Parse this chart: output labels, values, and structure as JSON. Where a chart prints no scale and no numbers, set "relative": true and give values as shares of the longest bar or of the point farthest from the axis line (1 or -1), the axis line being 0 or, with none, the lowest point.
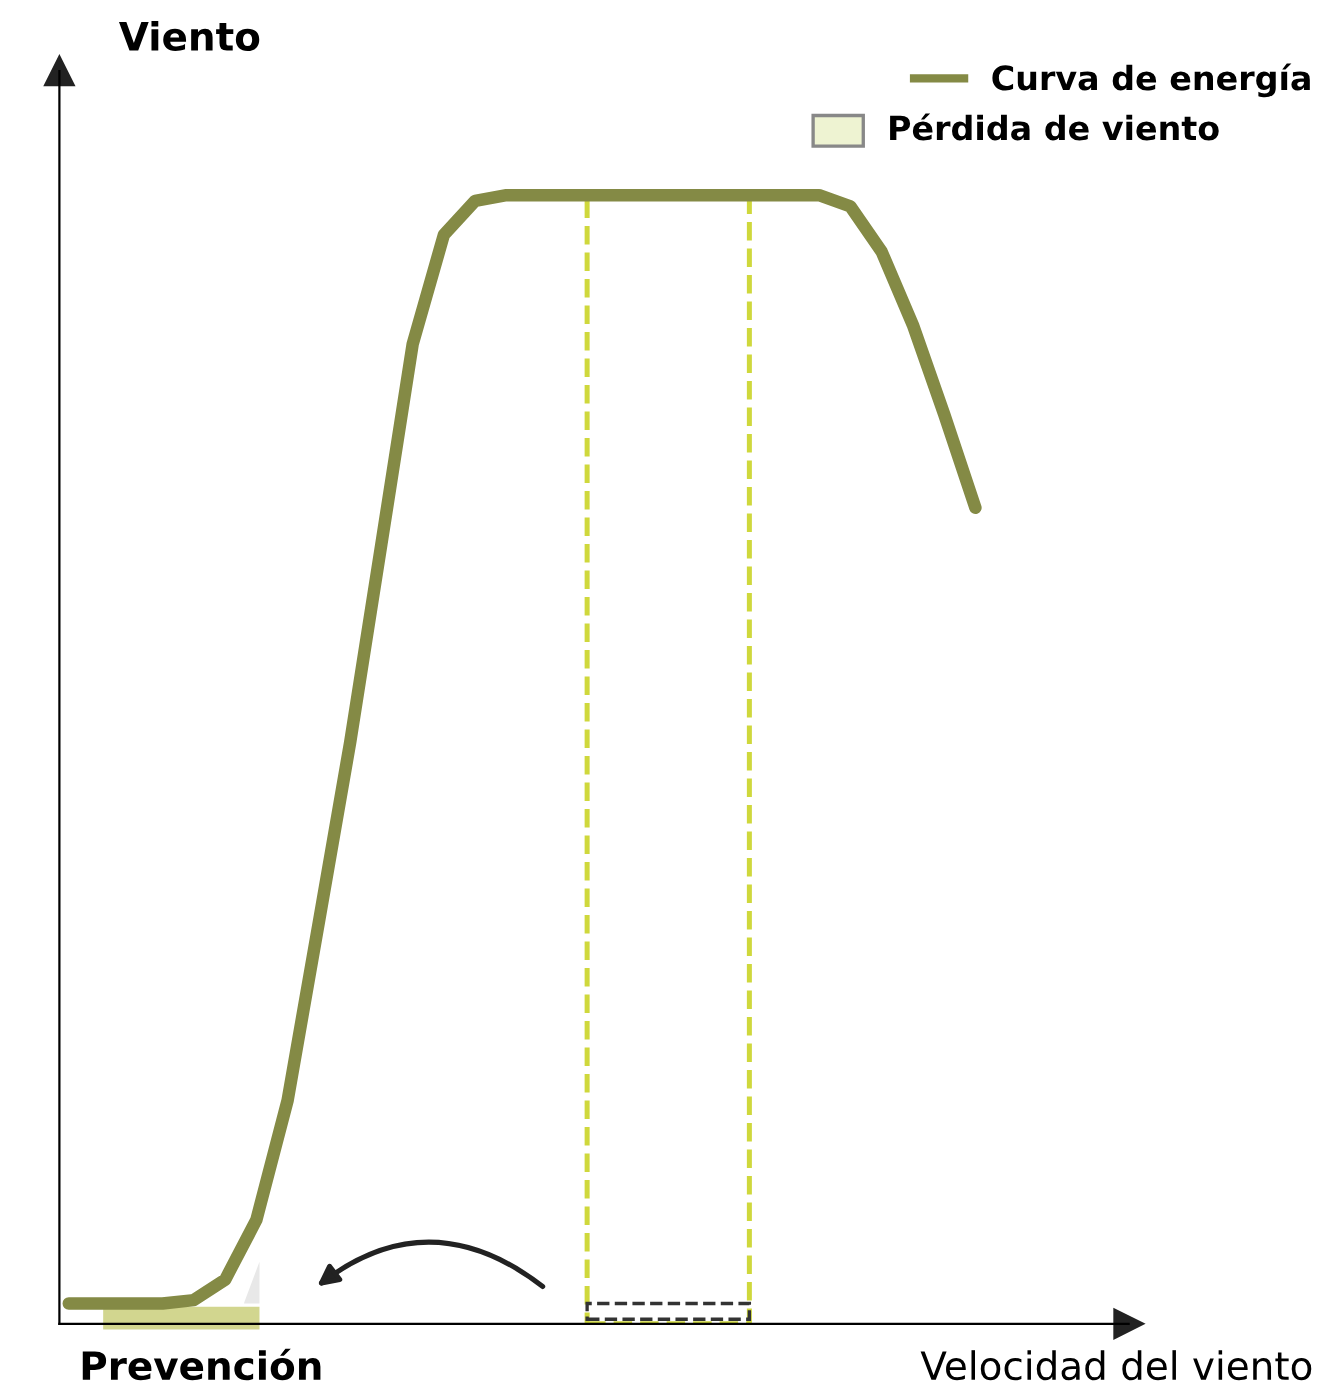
{
  "chart_data": {
    "type": "line",
    "relative": true,
    "ylabel": "Viento",
    "xlabel": "Velocidad del viento",
    "categories": [
      null,
      null,
      null,
      null,
      null,
      null,
      null,
      null,
      null,
      null,
      null,
      null,
      null,
      null,
      null,
      null,
      null,
      null,
      null,
      null,
      null,
      null,
      null,
      null,
      null,
      null,
      null,
      null,
      null,
      null
    ],
    "series": [
      {
        "name": "Curva de energía",
        "color": "#848a45",
        "values": [
          0.018,
          0.018,
          0.018,
          0.018,
          0.021,
          0.039,
          0.092,
          0.198,
          0.356,
          0.515,
          0.691,
          0.868,
          0.965,
          0.995,
          1,
          1,
          1,
          1,
          1,
          1,
          1,
          1,
          1,
          1,
          1,
          0.99,
          0.95,
          0.885,
          0.806,
          0.723
        ]
      }
    ],
    "annotations": [
      "Pérdida de viento",
      "Prevención"
    ],
    "legend": "top right",
    "grid": false,
    "marker": "none",
    "line_style": "solid"
  }
}
